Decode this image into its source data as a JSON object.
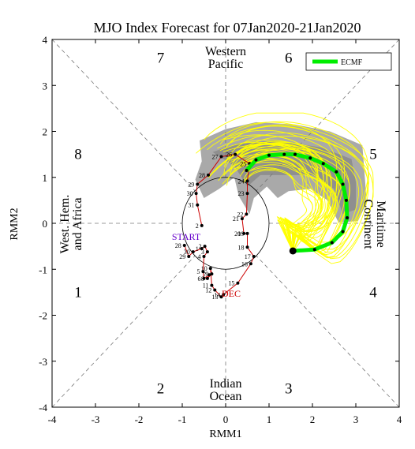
{
  "chart_data": {
    "type": "scatter",
    "title": "MJO Index Forecast for 07Jan2020-21Jan2020",
    "xlabel": "RMM1",
    "ylabel": "RMM2",
    "xlim": [
      -4,
      4
    ],
    "ylim": [
      -4,
      4
    ],
    "x_ticks": [
      "-4",
      "-3",
      "-2",
      "-1",
      "0",
      "1",
      "2",
      "3",
      "4"
    ],
    "y_ticks": [
      "-4",
      "-3",
      "-2",
      "-1",
      "0",
      "1",
      "2",
      "3",
      "4"
    ],
    "phases": [
      {
        "label": "1",
        "x": -3.4,
        "y": -1.5
      },
      {
        "label": "2",
        "x": -1.5,
        "y": -3.6
      },
      {
        "label": "3",
        "x": 1.45,
        "y": -3.6
      },
      {
        "label": "4",
        "x": 3.4,
        "y": -1.5
      },
      {
        "label": "5",
        "x": 3.4,
        "y": 1.5
      },
      {
        "label": "6",
        "x": 1.45,
        "y": 3.6
      },
      {
        "label": "7",
        "x": -1.5,
        "y": 3.6
      },
      {
        "label": "8",
        "x": -3.4,
        "y": 1.5
      }
    ],
    "regions": {
      "top": [
        "Western",
        "Pacific"
      ],
      "bottom": [
        "Indian",
        "Ocean"
      ],
      "left": [
        "West. Hem.",
        "and Africa"
      ],
      "right": [
        "Maritime",
        "Continent"
      ]
    },
    "legend": {
      "label": "ECMF",
      "color": "#00ee00",
      "position": "top-right"
    },
    "colors": {
      "observed": "#cc0000",
      "ensemble": "#ffff00",
      "mean": "#00ee00",
      "spread": "#a9a9a9",
      "start_label": "#6600cc",
      "dec_label": "#cc0000"
    },
    "start_label": "START",
    "month_label": "DEC",
    "observed": [
      {
        "label": "28",
        "x": -0.95,
        "y": -0.48
      },
      {
        "label": "29",
        "x": -0.85,
        "y": -0.72
      },
      {
        "label": "30",
        "x": -0.75,
        "y": -0.62
      },
      {
        "label": "1",
        "x": -0.55,
        "y": -0.55
      },
      {
        "label": "2",
        "x": -0.48,
        "y": -0.5
      },
      {
        "label": "3",
        "x": -0.42,
        "y": -0.62
      },
      {
        "label": "4",
        "x": -0.5,
        "y": -0.72
      },
      {
        "label": "5",
        "x": -0.52,
        "y": -1.05
      },
      {
        "label": "6",
        "x": -0.5,
        "y": -1.2
      },
      {
        "label": "7",
        "x": -0.38,
        "y": -1.12
      },
      {
        "label": "8",
        "x": -0.42,
        "y": -1.2
      },
      {
        "label": "9",
        "x": -0.32,
        "y": -1.1
      },
      {
        "label": "10",
        "x": -0.35,
        "y": -0.98
      },
      {
        "label": "11",
        "x": -0.32,
        "y": -1.35
      },
      {
        "label": "12",
        "x": -0.25,
        "y": -1.45
      },
      {
        "label": "13",
        "x": -0.1,
        "y": -1.6
      },
      {
        "label": "14",
        "x": -0.05,
        "y": -1.55
      },
      {
        "label": "15",
        "x": 0.28,
        "y": -1.3
      },
      {
        "label": "16",
        "x": 0.58,
        "y": -0.88
      },
      {
        "label": "17",
        "x": 0.65,
        "y": -0.72
      },
      {
        "label": "18",
        "x": 0.5,
        "y": -0.52
      },
      {
        "label": "19",
        "x": 0.5,
        "y": -0.22
      },
      {
        "label": "20",
        "x": 0.42,
        "y": -0.22
      },
      {
        "label": "21",
        "x": 0.38,
        "y": 0.1
      },
      {
        "label": "22",
        "x": 0.48,
        "y": 0.2
      },
      {
        "label": "23",
        "x": 0.5,
        "y": 0.65
      },
      {
        "label": "24",
        "x": 0.5,
        "y": 0.92
      },
      {
        "label": "25",
        "x": 0.55,
        "y": 1.3
      },
      {
        "label": "26",
        "x": 0.22,
        "y": 1.5
      },
      {
        "label": "27",
        "x": -0.1,
        "y": 1.45
      },
      {
        "label": "28",
        "x": -0.4,
        "y": 1.05
      },
      {
        "label": "29",
        "x": -0.65,
        "y": 0.85
      },
      {
        "label": "30",
        "x": -0.68,
        "y": 0.65
      },
      {
        "label": "31",
        "x": -0.65,
        "y": 0.4
      },
      {
        "label": "2",
        "x": -0.55,
        "y": -0.05
      }
    ],
    "ensemble_mean": [
      {
        "x": 1.55,
        "y": -0.6
      },
      {
        "x": 2.05,
        "y": -0.57
      },
      {
        "x": 2.45,
        "y": -0.42
      },
      {
        "x": 2.7,
        "y": -0.18
      },
      {
        "x": 2.8,
        "y": 0.12
      },
      {
        "x": 2.78,
        "y": 0.5
      },
      {
        "x": 2.7,
        "y": 0.85
      },
      {
        "x": 2.55,
        "y": 1.12
      },
      {
        "x": 2.25,
        "y": 1.3
      },
      {
        "x": 1.95,
        "y": 1.42
      },
      {
        "x": 1.6,
        "y": 1.5
      },
      {
        "x": 1.35,
        "y": 1.5
      },
      {
        "x": 1.0,
        "y": 1.48
      },
      {
        "x": 0.7,
        "y": 1.38
      },
      {
        "x": 0.48,
        "y": 1.15
      }
    ]
  }
}
